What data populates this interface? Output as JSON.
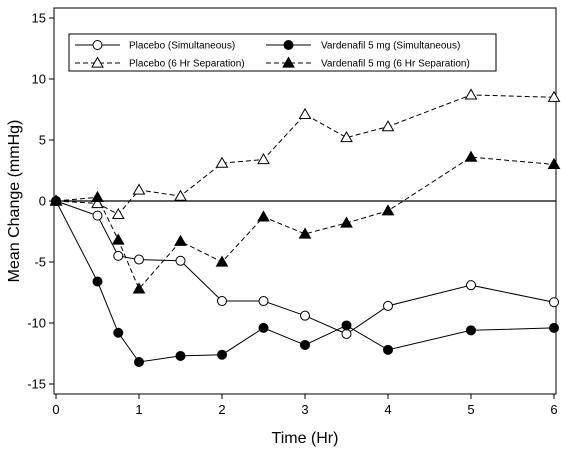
{
  "chart_data": {
    "type": "line",
    "xlabel": "Time (Hr)",
    "ylabel": "Mean Change (mmHg)",
    "xlim": [
      0,
      6
    ],
    "ylim": [
      -15,
      15
    ],
    "x_ticks": [
      0,
      1,
      2,
      3,
      4,
      5,
      6
    ],
    "y_ticks": [
      -15,
      -10,
      -5,
      0,
      5,
      10,
      15
    ],
    "legend_position": "top",
    "reference_line_y": 0,
    "series": [
      {
        "name": "Placebo (Simultaneous)",
        "line_style": "solid",
        "marker": "open-circle",
        "x": [
          0,
          0.5,
          0.75,
          1,
          1.5,
          2,
          2.5,
          3,
          3.5,
          4,
          5,
          6
        ],
        "y": [
          0,
          -1.2,
          -4.5,
          -4.8,
          -4.9,
          -8.2,
          -8.2,
          -9.4,
          -10.9,
          -8.6,
          -6.9,
          -8.3
        ]
      },
      {
        "name": "Placebo (6 Hr Separation)",
        "line_style": "dashed",
        "marker": "open-triangle",
        "x": [
          0,
          0.5,
          0.75,
          1,
          1.5,
          2,
          2.5,
          3,
          3.5,
          4,
          5,
          6
        ],
        "y": [
          0,
          -0.2,
          -1.1,
          0.9,
          0.4,
          3.1,
          3.4,
          7.1,
          5.2,
          6.1,
          8.7,
          8.5
        ]
      },
      {
        "name": "Vardenafil 5 mg (Simultaneous)",
        "line_style": "solid",
        "marker": "filled-circle",
        "x": [
          0,
          0.5,
          0.75,
          1,
          1.5,
          2,
          2.5,
          3,
          3.5,
          4,
          5,
          6
        ],
        "y": [
          0,
          -6.6,
          -10.8,
          -13.2,
          -12.7,
          -12.6,
          -10.4,
          -11.8,
          -10.2,
          -12.2,
          -10.6,
          -10.4
        ]
      },
      {
        "name": "Vardenafil 5 mg (6 Hr Separation)",
        "line_style": "dashed",
        "marker": "filled-triangle",
        "x": [
          0,
          0.5,
          0.75,
          1,
          1.5,
          2,
          2.5,
          3,
          3.5,
          4,
          5,
          6
        ],
        "y": [
          0,
          0.3,
          -3.2,
          -7.2,
          -3.3,
          -5.0,
          -1.3,
          -2.7,
          -1.8,
          -0.8,
          3.6,
          3.0
        ]
      }
    ]
  }
}
